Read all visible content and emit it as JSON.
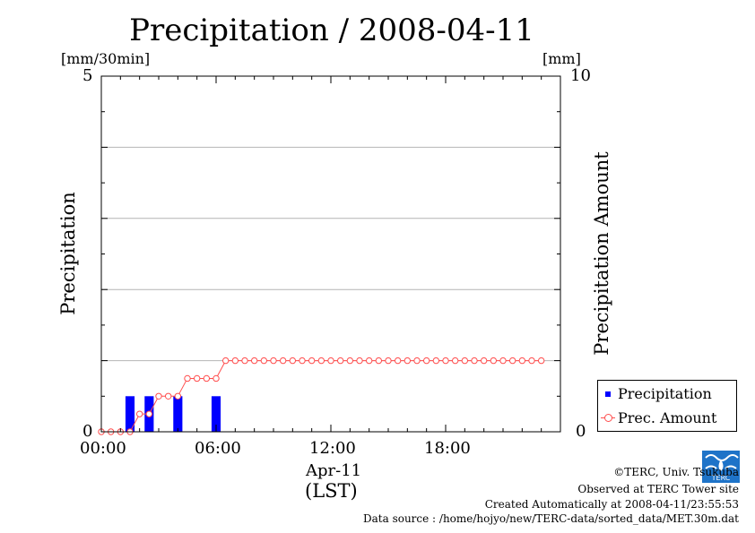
{
  "chart_data": {
    "type": "bar+line",
    "title": "Precipitation / 2008-04-11",
    "ylabel_left": "Precipitation",
    "ylabel_right": "Precipitation Amount",
    "unit_left": "[mm/30min]",
    "unit_right": "[mm]",
    "ylim_left": [
      0,
      5
    ],
    "ylim_right": [
      0,
      10
    ],
    "left_ticks": [
      "5",
      "0"
    ],
    "right_ticks": [
      "10",
      "0"
    ],
    "x_ticks": [
      "00:00",
      "06:00",
      "12:00",
      "18:00"
    ],
    "x_date_label": "Apr-11",
    "x_tz_label": "(LST)",
    "grid": "horizontal",
    "legend_position": "bottom-right",
    "x_unit": "hours",
    "series": [
      {
        "name": "Precipitation",
        "type": "bar",
        "axis": "left",
        "color": "#0000ff",
        "x": [
          1.5,
          2.5,
          4.0,
          6.0
        ],
        "values": [
          0.5,
          0.5,
          0.5,
          0.5
        ]
      },
      {
        "name": "Prec. Amount",
        "type": "line",
        "axis": "right",
        "color": "#ff4d4d",
        "x": [
          0,
          0.5,
          1,
          1.5,
          2,
          2.5,
          3,
          3.5,
          4,
          4.5,
          5,
          5.5,
          6,
          6.5,
          7,
          7.5,
          8,
          8.5,
          9,
          9.5,
          10,
          10.5,
          11,
          11.5,
          12,
          12.5,
          13,
          13.5,
          14,
          14.5,
          15,
          15.5,
          16,
          16.5,
          17,
          17.5,
          18,
          18.5,
          19,
          19.5,
          20,
          20.5,
          21,
          21.5,
          22,
          22.5,
          23
        ],
        "values": [
          0,
          0,
          0,
          0,
          0.5,
          0.5,
          1.0,
          1.0,
          1.0,
          1.5,
          1.5,
          1.5,
          1.5,
          2.0,
          2.0,
          2.0,
          2.0,
          2.0,
          2.0,
          2.0,
          2.0,
          2.0,
          2.0,
          2.0,
          2.0,
          2.0,
          2.0,
          2.0,
          2.0,
          2.0,
          2.0,
          2.0,
          2.0,
          2.0,
          2.0,
          2.0,
          2.0,
          2.0,
          2.0,
          2.0,
          2.0,
          2.0,
          2.0,
          2.0,
          2.0,
          2.0,
          2.0
        ]
      }
    ]
  },
  "legend": {
    "items": [
      "Precipitation",
      "Prec. Amount"
    ]
  },
  "credits": {
    "copyright": "©TERC, Univ. Tsukuba",
    "observed": "Observed at TERC Tower site",
    "created": "Created Automatically at 2008-04-11/23:55:53",
    "source": "Data source : /home/hojyo/new/TERC-data/sorted_data/MET.30m.dat",
    "logo_text": "TERC"
  }
}
